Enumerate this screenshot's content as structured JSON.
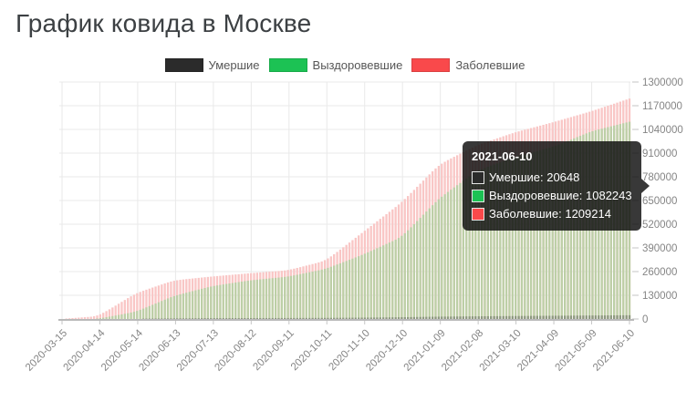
{
  "page": {
    "title": "График ковида в Москве"
  },
  "legend": [
    {
      "label": "Умершие",
      "color": "#2b2b2b"
    },
    {
      "label": "Выздоровевшие",
      "color": "#1cc254"
    },
    {
      "label": "Заболевшие",
      "color": "#f9494b"
    }
  ],
  "tooltip": {
    "title": "2021-06-10",
    "rows": [
      {
        "label": "Умершие",
        "value": "20648",
        "text": "Умершие: 20648",
        "color": "#2b2b2b"
      },
      {
        "label": "Выздоровевшие",
        "value": "1082243",
        "text": "Выздоровевшие: 1082243",
        "color": "#1cc254"
      },
      {
        "label": "Заболевшие",
        "value": "1209214",
        "text": "Заболевшие: 1209214",
        "color": "#f9494b"
      }
    ]
  },
  "chart_data": {
    "type": "bar",
    "title": "График ковида в Москве",
    "bar_mode": "overlaid-cumulative-daily",
    "grid": true,
    "legend_position": "top",
    "ylim": [
      0,
      1300000
    ],
    "y_ticks": [
      0,
      130000,
      260000,
      390000,
      520000,
      650000,
      780000,
      910000,
      1040000,
      1170000,
      1300000
    ],
    "x_tick_labels": [
      "2020-03-15",
      "2020-04-14",
      "2020-05-14",
      "2020-06-13",
      "2020-07-13",
      "2020-08-12",
      "2020-09-11",
      "2020-10-11",
      "2020-11-10",
      "2020-12-10",
      "2021-01-09",
      "2021-02-08",
      "2021-03-10",
      "2021-04-09",
      "2021-05-09",
      "2021-06-10"
    ],
    "series": [
      {
        "name": "Заболевшие",
        "color": "#f9494b",
        "fill": "#f9c6c5",
        "values": [
          60,
          15000,
          142000,
          212000,
          233000,
          251000,
          267000,
          320000,
          480000,
          640000,
          850000,
          955000,
          1025000,
          1080000,
          1140000,
          1209214
        ]
      },
      {
        "name": "Выздоровевшие",
        "color": "#1cc254",
        "fill": "#bccfa6",
        "values": [
          0,
          1200,
          40000,
          127000,
          180000,
          212000,
          232000,
          275000,
          355000,
          450000,
          665000,
          815000,
          890000,
          945000,
          1030000,
          1082243
        ]
      },
      {
        "name": "Умершие",
        "color": "#2b2b2b",
        "fill": "#8d987f",
        "values": [
          0,
          130,
          1700,
          3300,
          4600,
          5000,
          5400,
          6000,
          7500,
          9700,
          12800,
          14700,
          16300,
          17700,
          19200,
          20648
        ]
      }
    ],
    "axis_colors": {
      "grid": "#e9e9e9",
      "axis_line": "#b9b9b9",
      "tick": "#c6c6c6",
      "label": "#858585"
    }
  }
}
